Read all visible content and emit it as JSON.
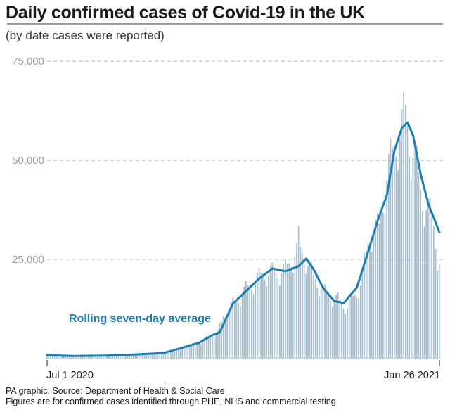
{
  "header": {
    "title": "Daily confirmed cases of Covid-19 in the UK",
    "subtitle": "(by date cases were reported)"
  },
  "footer": {
    "source": "PA graphic. Source: Department of Health & Social Care",
    "note": "Figures are for confirmed cases identified through PHE, NHS and commercial testing"
  },
  "colors": {
    "bars": "#a9bfcf",
    "average_line": "#1a7fb0",
    "annotation": "#1a7fb0",
    "grid": "#b0b0b0",
    "tick_label": "#9a9a9a"
  },
  "chart_data": {
    "type": "bar",
    "title": "Daily confirmed cases of Covid-19 in the UK",
    "subtitle": "(by date cases were reported)",
    "x_start": "2020-07-01",
    "x_end": "2021-01-26",
    "x_tick_labels": [
      "Jul 1 2020",
      "Jan 26 2021"
    ],
    "ylim": [
      0,
      75000
    ],
    "y_ticks": [
      25000,
      50000,
      75000
    ],
    "y_tick_labels": [
      "25,000",
      "50,000",
      "75,000"
    ],
    "grid": "horizontal dashed",
    "series": [
      {
        "type": "bar",
        "points": [
          [
            "2020-07-01",
            800
          ],
          [
            "2020-07-15",
            600
          ],
          [
            "2020-08-01",
            750
          ],
          [
            "2020-08-15",
            1000
          ],
          [
            "2020-09-01",
            1300
          ],
          [
            "2020-09-10",
            2900
          ],
          [
            "2020-09-20",
            4400
          ],
          [
            "2020-09-30",
            7100
          ],
          [
            "2020-10-03",
            12900
          ],
          [
            "2020-10-10",
            15200
          ],
          [
            "2020-10-15",
            18900
          ],
          [
            "2020-10-24",
            23000
          ],
          [
            "2020-10-31",
            21900
          ],
          [
            "2020-11-05",
            24100
          ],
          [
            "2020-11-12",
            33400
          ],
          [
            "2020-11-20",
            20200
          ],
          [
            "2020-11-27",
            17000
          ],
          [
            "2020-12-03",
            16300
          ],
          [
            "2020-12-08",
            12300
          ],
          [
            "2020-12-15",
            18500
          ],
          [
            "2020-12-20",
            35900
          ],
          [
            "2020-12-25",
            32700
          ],
          [
            "2020-12-29",
            53100
          ],
          [
            "2021-01-02",
            57700
          ],
          [
            "2021-01-06",
            62300
          ],
          [
            "2021-01-08",
            68100
          ],
          [
            "2021-01-10",
            54900
          ],
          [
            "2021-01-14",
            48700
          ],
          [
            "2021-01-17",
            38600
          ],
          [
            "2021-01-20",
            38900
          ],
          [
            "2021-01-23",
            33500
          ],
          [
            "2021-01-25",
            22200
          ],
          [
            "2021-01-26",
            20100
          ]
        ]
      },
      {
        "type": "line",
        "points": [
          [
            "2020-07-01",
            850
          ],
          [
            "2020-07-15",
            650
          ],
          [
            "2020-08-01",
            750
          ],
          [
            "2020-08-15",
            1000
          ],
          [
            "2020-09-01",
            1400
          ],
          [
            "2020-09-10",
            2600
          ],
          [
            "2020-09-20",
            4000
          ],
          [
            "2020-09-27",
            5900
          ],
          [
            "2020-10-01",
            6600
          ],
          [
            "2020-10-08",
            13900
          ],
          [
            "2020-10-15",
            17000
          ],
          [
            "2020-10-22",
            20200
          ],
          [
            "2020-10-29",
            22700
          ],
          [
            "2020-11-05",
            22000
          ],
          [
            "2020-11-12",
            23300
          ],
          [
            "2020-11-16",
            25200
          ],
          [
            "2020-11-20",
            22500
          ],
          [
            "2020-11-25",
            17800
          ],
          [
            "2020-12-01",
            14500
          ],
          [
            "2020-12-06",
            14000
          ],
          [
            "2020-12-13",
            17900
          ],
          [
            "2020-12-19",
            26900
          ],
          [
            "2020-12-24",
            34700
          ],
          [
            "2020-12-29",
            41200
          ],
          [
            "2021-01-02",
            52400
          ],
          [
            "2021-01-06",
            58200
          ],
          [
            "2021-01-09",
            59500
          ],
          [
            "2021-01-12",
            56200
          ],
          [
            "2021-01-16",
            46500
          ],
          [
            "2021-01-20",
            39100
          ],
          [
            "2021-01-24",
            34200
          ],
          [
            "2021-01-26",
            31800
          ]
        ]
      }
    ],
    "annotations": [
      "Rolling seven-day average"
    ]
  }
}
